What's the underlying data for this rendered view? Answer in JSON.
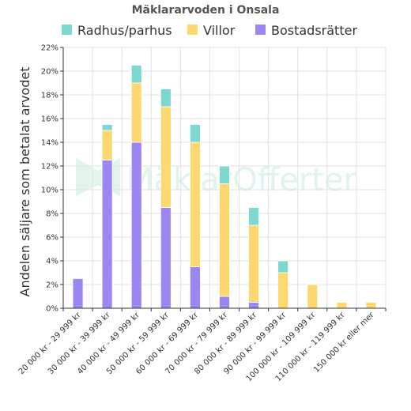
{
  "chart_data": {
    "type": "bar",
    "stacked": true,
    "title": "Mäklararvoden i Onsala",
    "ylabel": "Andelen säljare som betalat arvodet",
    "xlabel": "",
    "ylim": [
      0,
      22
    ],
    "yticks": [
      0,
      2,
      4,
      6,
      8,
      10,
      12,
      14,
      16,
      18,
      20,
      22
    ],
    "ytick_suffix": "%",
    "grid": true,
    "legend_position": "top",
    "watermark": "MäklarOfferter",
    "categories": [
      "20 000 kr - 29 999 kr",
      "30 000 kr - 39 999 kr",
      "40 000 kr - 49 999 kr",
      "50 000 kr - 59 999 kr",
      "60 000 kr - 69 999 kr",
      "70 000 kr - 79 999 kr",
      "80 000 kr - 89 999 kr",
      "90 000 kr - 99 999 kr",
      "100 000 kr - 109 999 kr",
      "110 000 kr - 119 999 kr",
      "150 000 kr eller mer"
    ],
    "legend_order": [
      "Radhus/parhus",
      "Villor",
      "Bostadsrätter"
    ],
    "series": [
      {
        "name": "Bostadsrätter",
        "color": "#9b86f2",
        "values": [
          2.5,
          12.5,
          14,
          8.5,
          3.5,
          1,
          0.5,
          0,
          0,
          0,
          0
        ]
      },
      {
        "name": "Villor",
        "color": "#fdd870",
        "values": [
          0,
          2.5,
          5,
          8.5,
          10.5,
          9.5,
          6.5,
          3,
          2,
          0.5,
          0.5
        ]
      },
      {
        "name": "Radhus/parhus",
        "color": "#7dd8d0",
        "values": [
          0,
          0.5,
          1.5,
          1.5,
          1.5,
          1.5,
          1.5,
          1,
          0,
          0,
          0
        ]
      }
    ]
  }
}
